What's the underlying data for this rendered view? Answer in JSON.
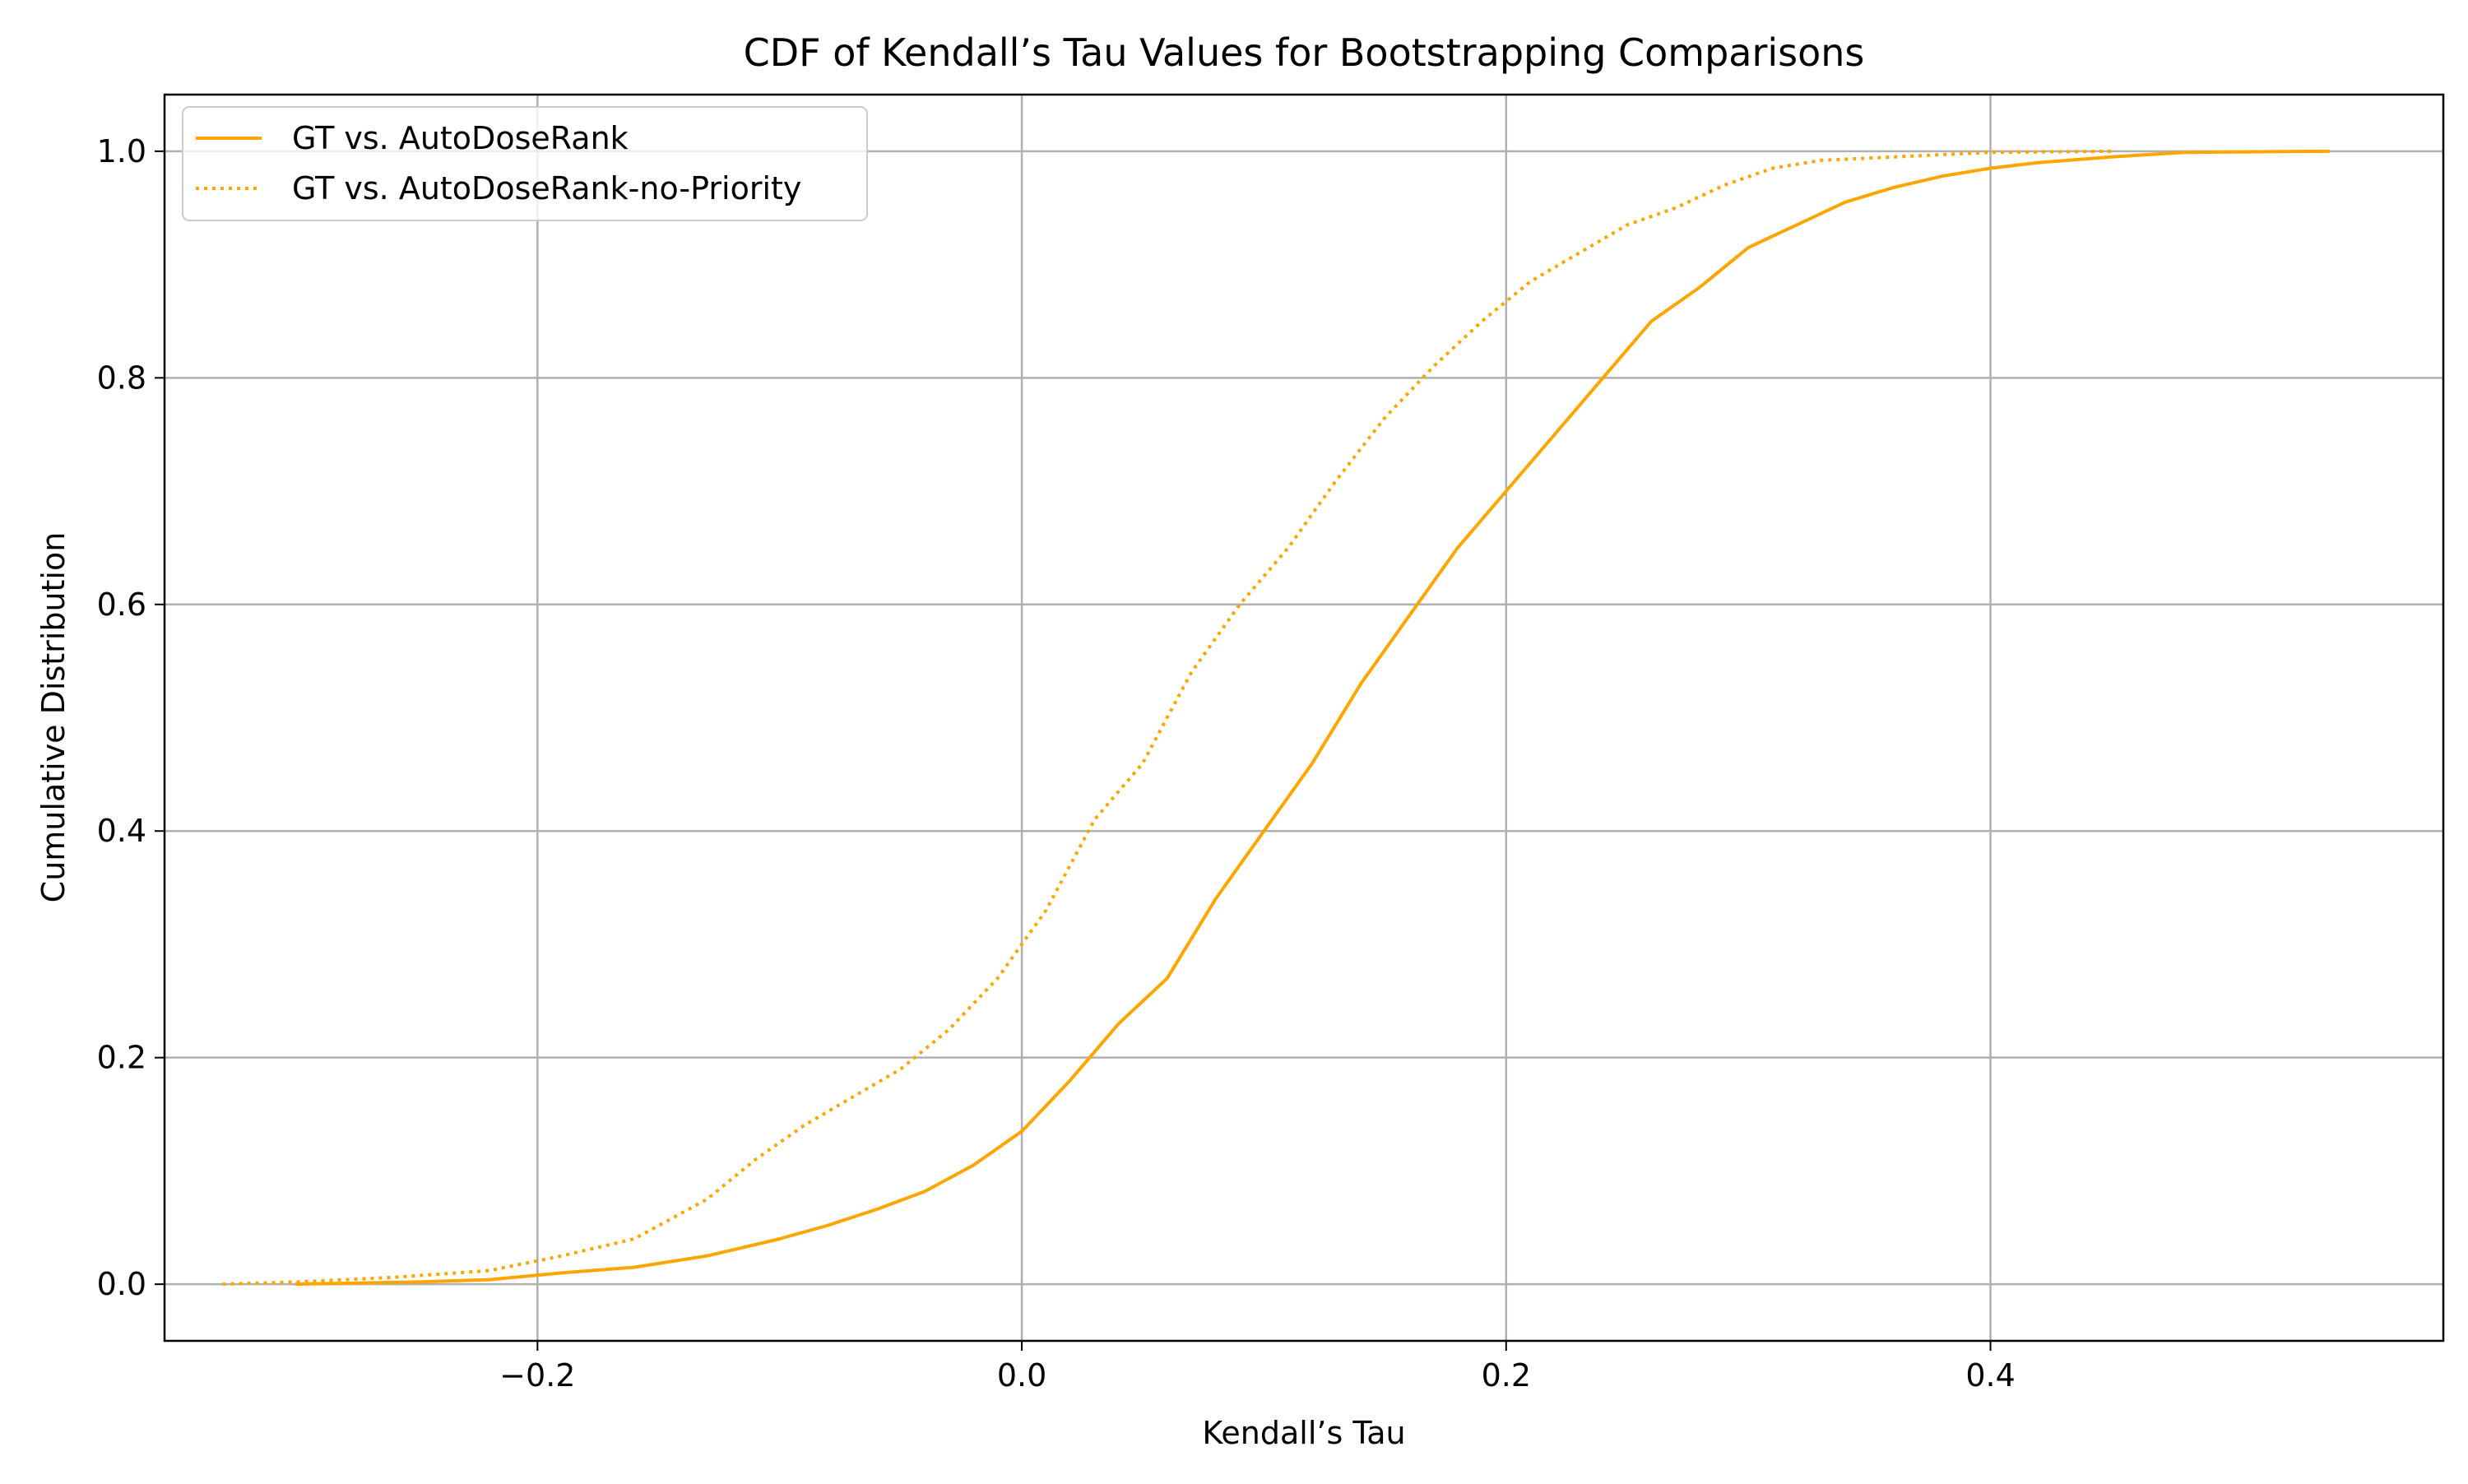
{
  "chart_data": {
    "type": "line",
    "title": "CDF of Kendall’s Tau Values for Bootstrapping Comparisons",
    "xlabel": "Kendall’s Tau",
    "ylabel": "Cumulative Distribution",
    "xlim": [
      -0.354,
      0.587
    ],
    "ylim": [
      -0.05,
      1.05
    ],
    "xticks": [
      -0.2,
      0.0,
      0.2,
      0.4
    ],
    "xtick_labels": [
      "−0.2",
      "0.0",
      "0.2",
      "0.4"
    ],
    "yticks": [
      0.0,
      0.2,
      0.4,
      0.6,
      0.8,
      1.0
    ],
    "ytick_labels": [
      "0.0",
      "0.2",
      "0.4",
      "0.6",
      "0.8",
      "1.0"
    ],
    "grid": true,
    "legend_position": "upper-left",
    "series": [
      {
        "name": "GT vs. AutoDoseRank",
        "style": "solid",
        "color": "#FFA500",
        "x": [
          -0.3,
          -0.25,
          -0.22,
          -0.19,
          -0.16,
          -0.13,
          -0.1,
          -0.08,
          -0.06,
          -0.04,
          -0.02,
          0.0,
          0.02,
          0.04,
          0.06,
          0.08,
          0.1,
          0.12,
          0.14,
          0.16,
          0.18,
          0.2,
          0.22,
          0.24,
          0.26,
          0.28,
          0.3,
          0.32,
          0.34,
          0.36,
          0.38,
          0.4,
          0.42,
          0.45,
          0.48,
          0.54
        ],
        "y": [
          0.0,
          0.002,
          0.004,
          0.01,
          0.015,
          0.025,
          0.04,
          0.052,
          0.066,
          0.082,
          0.105,
          0.135,
          0.18,
          0.23,
          0.27,
          0.34,
          0.4,
          0.46,
          0.53,
          0.59,
          0.65,
          0.7,
          0.75,
          0.8,
          0.85,
          0.88,
          0.915,
          0.935,
          0.955,
          0.968,
          0.978,
          0.985,
          0.99,
          0.995,
          0.999,
          1.0
        ]
      },
      {
        "name": "GT vs. AutoDoseRank-no-Priority",
        "style": "dotted",
        "color": "#FFA500",
        "x": [
          -0.33,
          -0.3,
          -0.26,
          -0.22,
          -0.19,
          -0.16,
          -0.13,
          -0.11,
          -0.09,
          -0.07,
          -0.05,
          -0.03,
          -0.01,
          0.01,
          0.03,
          0.05,
          0.07,
          0.09,
          0.11,
          0.13,
          0.15,
          0.17,
          0.19,
          0.21,
          0.23,
          0.25,
          0.27,
          0.29,
          0.31,
          0.33,
          0.36,
          0.4,
          0.45
        ],
        "y": [
          0.0,
          0.002,
          0.006,
          0.012,
          0.025,
          0.04,
          0.075,
          0.11,
          0.14,
          0.165,
          0.19,
          0.225,
          0.27,
          0.33,
          0.41,
          0.46,
          0.54,
          0.6,
          0.65,
          0.71,
          0.765,
          0.81,
          0.85,
          0.885,
          0.91,
          0.935,
          0.95,
          0.97,
          0.985,
          0.992,
          0.995,
          0.999,
          1.0
        ]
      }
    ]
  }
}
